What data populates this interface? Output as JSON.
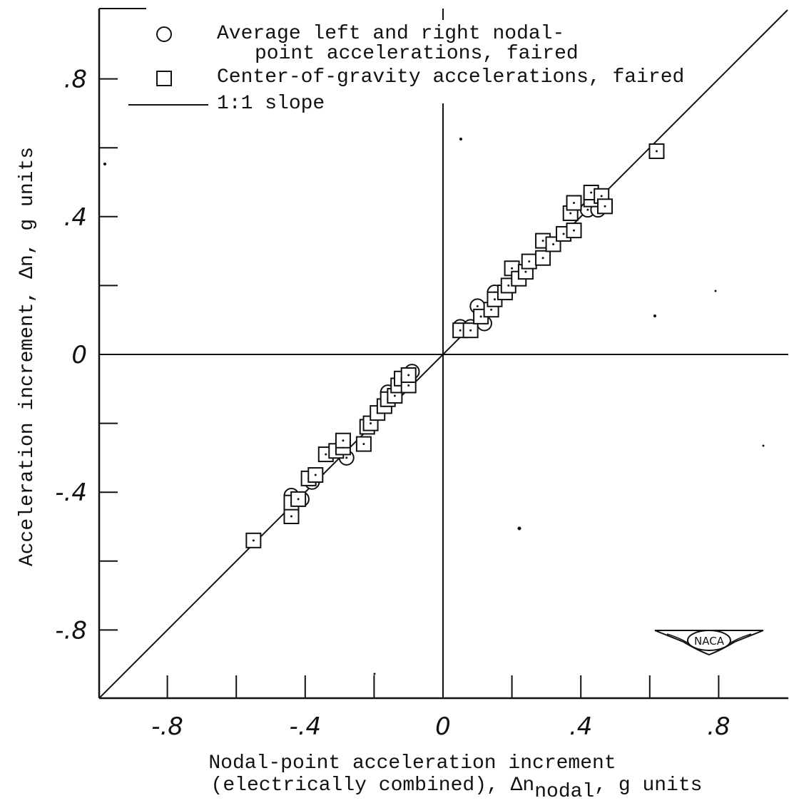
{
  "chart_data": {
    "type": "scatter",
    "xlabel_line1": "Nodal-point acceleration increment",
    "xlabel_line2_main": "(electrically combined), Δn",
    "xlabel_line2_sub": "nodal",
    "xlabel_line2_end": ", g units",
    "ylabel": "Acceleration increment, Δn, g units",
    "xlim": [
      -1.0,
      1.0
    ],
    "ylim": [
      -1.0,
      1.0
    ],
    "xticks": [
      -0.8,
      -0.4,
      0,
      0.4,
      0.8
    ],
    "xtick_labels": [
      "-.8",
      "-.4",
      "0",
      ".4",
      ".8"
    ],
    "yticks": [
      -0.8,
      -0.4,
      0,
      0.4,
      0.8
    ],
    "ytick_labels": [
      "-.8",
      "-.4",
      "0",
      ".4",
      ".8"
    ],
    "legend": {
      "placement": "top-left",
      "entries": [
        {
          "marker": "circle",
          "line1": "Average left and right nodal-",
          "line2": "point accelerations, faired"
        },
        {
          "marker": "square",
          "line1": "Center-of-gravity accelerations, faired"
        },
        {
          "marker": "line",
          "line1": "1:1 slope"
        }
      ]
    },
    "reference_line": {
      "name": "1:1 slope",
      "slope": 1,
      "intercept": 0
    },
    "series": [
      {
        "name": "Average left and right nodal-point accelerations, faired",
        "marker": "circle",
        "points": [
          [
            0.05,
            0.08
          ],
          [
            0.08,
            0.08
          ],
          [
            0.1,
            0.14
          ],
          [
            0.12,
            0.09
          ],
          [
            0.15,
            0.18
          ],
          [
            0.42,
            0.42
          ],
          [
            0.45,
            0.42
          ],
          [
            -0.09,
            -0.05
          ],
          [
            -0.11,
            -0.08
          ],
          [
            -0.16,
            -0.11
          ],
          [
            -0.28,
            -0.3
          ],
          [
            -0.38,
            -0.37
          ],
          [
            -0.44,
            -0.41
          ],
          [
            -0.41,
            -0.42
          ]
        ]
      },
      {
        "name": "Center-of-gravity accelerations, faired",
        "marker": "square",
        "points": [
          [
            -0.55,
            -0.54
          ],
          [
            -0.44,
            -0.47
          ],
          [
            -0.44,
            -0.43
          ],
          [
            -0.42,
            -0.42
          ],
          [
            -0.39,
            -0.36
          ],
          [
            -0.37,
            -0.35
          ],
          [
            -0.34,
            -0.29
          ],
          [
            -0.31,
            -0.28
          ],
          [
            -0.29,
            -0.27
          ],
          [
            -0.29,
            -0.25
          ],
          [
            -0.23,
            -0.26
          ],
          [
            -0.22,
            -0.21
          ],
          [
            -0.21,
            -0.2
          ],
          [
            -0.19,
            -0.17
          ],
          [
            -0.17,
            -0.15
          ],
          [
            -0.16,
            -0.13
          ],
          [
            -0.14,
            -0.12
          ],
          [
            -0.13,
            -0.09
          ],
          [
            -0.12,
            -0.07
          ],
          [
            -0.1,
            -0.09
          ],
          [
            -0.1,
            -0.06
          ],
          [
            0.05,
            0.07
          ],
          [
            0.08,
            0.07
          ],
          [
            0.11,
            0.11
          ],
          [
            0.14,
            0.13
          ],
          [
            0.15,
            0.16
          ],
          [
            0.18,
            0.18
          ],
          [
            0.19,
            0.2
          ],
          [
            0.2,
            0.25
          ],
          [
            0.22,
            0.22
          ],
          [
            0.24,
            0.24
          ],
          [
            0.25,
            0.27
          ],
          [
            0.29,
            0.28
          ],
          [
            0.29,
            0.33
          ],
          [
            0.32,
            0.32
          ],
          [
            0.35,
            0.35
          ],
          [
            0.38,
            0.36
          ],
          [
            0.37,
            0.41
          ],
          [
            0.38,
            0.44
          ],
          [
            0.43,
            0.45
          ],
          [
            0.43,
            0.47
          ],
          [
            0.46,
            0.46
          ],
          [
            0.47,
            0.43
          ],
          [
            0.62,
            0.59
          ]
        ]
      }
    ]
  },
  "logo": {
    "text": "NACA"
  }
}
